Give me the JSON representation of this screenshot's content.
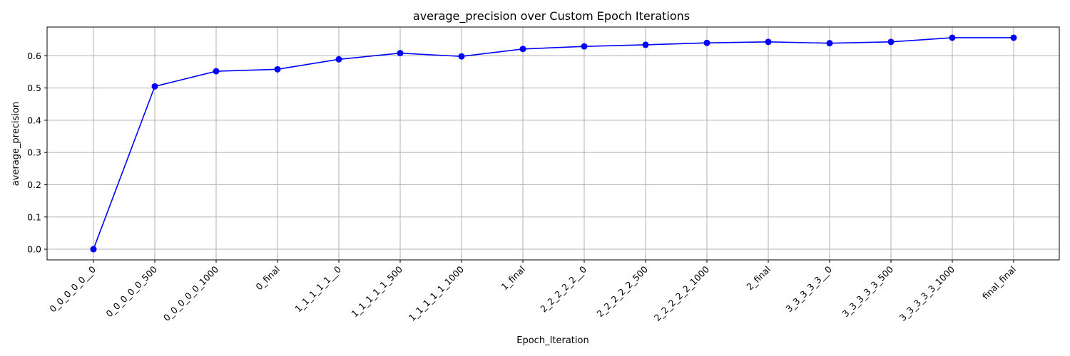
{
  "chart_data": {
    "type": "line",
    "title": "average_precision over Custom Epoch Iterations",
    "xlabel": "Epoch_Iteration",
    "ylabel": "average_precision",
    "categories": [
      "0_0_0_0_0__0",
      "0_0_0_0_0_500",
      "0_0_0_0_0_1000",
      "0_final",
      "1_1_1_1_1__0",
      "1_1_1_1_1_500",
      "1_1_1_1_1_1000",
      "1_final",
      "2_2_2_2_2__0",
      "2_2_2_2_2_500",
      "2_2_2_2_2_1000",
      "2_final",
      "3_3_3_3_3__0",
      "3_3_3_3_3_500",
      "3_3_3_3_3_1000",
      "final_final"
    ],
    "series": [
      {
        "values": [
          0.0,
          0.505,
          0.552,
          0.558,
          0.589,
          0.608,
          0.598,
          0.621,
          0.629,
          0.634,
          0.64,
          0.643,
          0.639,
          0.643,
          0.656,
          0.656
        ]
      }
    ],
    "yticks": [
      "0.0",
      "0.1",
      "0.2",
      "0.3",
      "0.4",
      "0.5",
      "0.6"
    ],
    "ylim": [
      -0.033,
      0.689
    ],
    "grid": true,
    "line_color": "#0000ff",
    "marker": "circle"
  }
}
